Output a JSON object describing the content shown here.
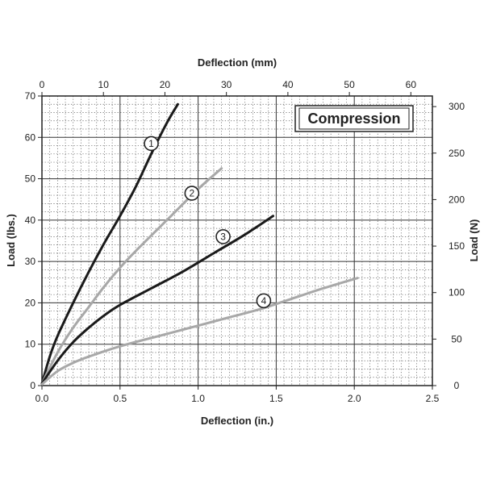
{
  "chart_data": {
    "type": "line",
    "title": "Compression",
    "xlabel": "Deflection (in.)",
    "ylabel": "Load (lbs.)",
    "x2label": "Deflection (mm)",
    "y2label": "Load (N)",
    "xlim": [
      0,
      2.5
    ],
    "ylim": [
      0,
      70
    ],
    "x2lim": [
      0,
      63.5
    ],
    "y2lim": [
      0,
      311.4
    ],
    "xticks": [
      "0.0",
      "0.5",
      "1.0",
      "1.5",
      "2.0",
      "2.5"
    ],
    "yticks": [
      "0",
      "10",
      "20",
      "30",
      "40",
      "50",
      "60",
      "70"
    ],
    "x2ticks": [
      "0",
      "10",
      "20",
      "30",
      "40",
      "50",
      "60"
    ],
    "y2ticks": [
      "0",
      "50",
      "100",
      "150",
      "200",
      "250",
      "300"
    ],
    "grid": true,
    "series": [
      {
        "name": "1",
        "color": "#1a1a1a",
        "x": [
          0,
          0.05,
          0.1,
          0.2,
          0.3,
          0.4,
          0.5,
          0.6,
          0.7,
          0.8,
          0.87
        ],
        "y": [
          0.5,
          7,
          12,
          20,
          27.5,
          34.5,
          41,
          48,
          56,
          63.5,
          68
        ],
        "marker": {
          "label": "1",
          "x": 0.7,
          "y": 58.5
        }
      },
      {
        "name": "2",
        "color": "#a8a8a8",
        "x": [
          0,
          0.1,
          0.2,
          0.3,
          0.4,
          0.5,
          0.6,
          0.8,
          1.0,
          1.15
        ],
        "y": [
          0.5,
          8,
          14,
          19,
          24,
          28.5,
          32.5,
          40,
          47.5,
          52.5
        ],
        "marker": {
          "label": "2",
          "x": 0.96,
          "y": 46.5
        }
      },
      {
        "name": "3",
        "color": "#1a1a1a",
        "x": [
          0,
          0.1,
          0.2,
          0.3,
          0.4,
          0.5,
          0.7,
          0.9,
          1.1,
          1.3,
          1.48
        ],
        "y": [
          0.5,
          6,
          10.5,
          14,
          17,
          19.5,
          23.5,
          27.5,
          32,
          36.5,
          41
        ],
        "marker": {
          "label": "3",
          "x": 1.16,
          "y": 36
        }
      },
      {
        "name": "4",
        "color": "#a8a8a8",
        "x": [
          0,
          0.1,
          0.2,
          0.3,
          0.5,
          0.8,
          1.0,
          1.2,
          1.4,
          1.6,
          1.8,
          2.02
        ],
        "y": [
          0.3,
          3.5,
          5.5,
          7,
          9.5,
          12.5,
          14.5,
          16.5,
          18.5,
          21,
          23.5,
          26
        ],
        "marker": {
          "label": "4",
          "x": 1.42,
          "y": 20.5
        }
      }
    ]
  }
}
